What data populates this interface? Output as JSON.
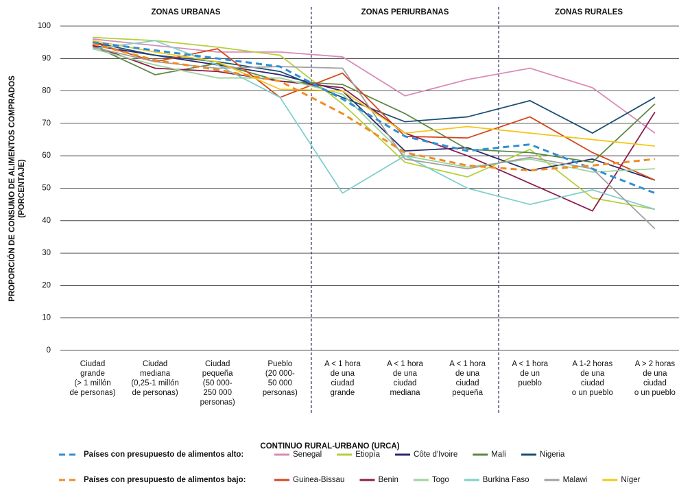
{
  "chart_data": {
    "type": "line",
    "y_label": [
      "PROPORCIÓN DE CONSUMO DE ALIMENTOS COMPRADOS",
      "(PORCENTAJE)"
    ],
    "x_label": "CONTINUO RURAL-URBANO (URCA)",
    "zones": [
      {
        "label": "ZONAS URBANAS",
        "span": 4
      },
      {
        "label": "ZONAS PERIURBANAS",
        "span": 3
      },
      {
        "label": "ZONAS RURALES",
        "span": 3
      }
    ],
    "categories": [
      [
        "Ciudad",
        "grande",
        "(> 1 millón",
        "de personas)"
      ],
      [
        "Ciudad",
        "mediana",
        "(0,25-1 millón",
        "de personas)"
      ],
      [
        "Ciudad",
        "pequeña",
        "(50 000-",
        "250 000",
        "personas)"
      ],
      [
        "Pueblo",
        "(20 000-",
        "50 000",
        "personas)"
      ],
      [
        "A < 1 hora",
        "de una",
        "ciudad",
        "grande"
      ],
      [
        "A < 1 hora",
        "de una",
        "ciudad",
        "mediana"
      ],
      [
        "A < 1 hora",
        "de una",
        "ciudad",
        "pequeña"
      ],
      [
        "A < 1 hora",
        "de un",
        "pueblo"
      ],
      [
        "A 1-2 horas",
        "de una",
        "ciudad",
        "o un pueblo"
      ],
      [
        "A > 2 horas",
        "de una",
        "ciudad",
        "o un pueblo"
      ]
    ],
    "ylim": [
      0,
      100
    ],
    "yticks": [
      0,
      10,
      20,
      30,
      40,
      50,
      60,
      70,
      80,
      90,
      100
    ],
    "grid": true,
    "groups": [
      {
        "name": "Países con presupuesto de alimentos alto:",
        "color": "#2f8fd6",
        "values": [
          95,
          92.5,
          90,
          87.5,
          77.5,
          66,
          61.5,
          63.5,
          56,
          48.5
        ],
        "series": [
          {
            "name": "Senegal",
            "color": "#d98bb7",
            "values": [
              96,
              94,
              92,
              92,
              90.5,
              78.5,
              83.5,
              87,
              81,
              67
            ]
          },
          {
            "name": "Etiopía",
            "color": "#b5cf3c",
            "values": [
              96.5,
              95.5,
              93.5,
              91,
              76,
              58,
              53.5,
              62,
              47,
              43.5
            ]
          },
          {
            "name": "Côte d'Ivoire",
            "color": "#2a2a6e",
            "values": [
              94,
              91,
              88,
              85,
              80,
              61.5,
              62.5,
              55.5,
              59,
              52.5
            ]
          },
          {
            "name": "Malí",
            "color": "#5a8a44",
            "values": [
              94,
              85,
              88.5,
              83,
              82,
              73,
              62,
              61,
              58,
              76
            ]
          },
          {
            "name": "Nigeria",
            "color": "#1c4f73",
            "values": [
              95,
              91,
              89,
              86,
              78,
              70.5,
              72,
              77,
              67,
              78
            ]
          }
        ]
      },
      {
        "name": "Países con presupuesto de alimentos bajo:",
        "color": "#f08c24",
        "values": [
          94.5,
          89.5,
          86.5,
          83,
          73,
          61,
          57,
          55.5,
          57,
          59
        ],
        "series": [
          {
            "name": "Guinea-Bissau",
            "color": "#d4461c",
            "values": [
              95,
              89,
              93,
              78,
              85.5,
              66,
              65.5,
              72,
              61,
              52.5
            ]
          },
          {
            "name": "Benin",
            "color": "#8c1d4f",
            "values": [
              94,
              87,
              86,
              83,
              81,
              67,
              60,
              51.5,
              43,
              73.5
            ]
          },
          {
            "name": "Togo",
            "color": "#9dd49a",
            "values": [
              93,
              88,
              84,
              84,
              79,
              60,
              56.5,
              59,
              55,
              56
            ]
          },
          {
            "name": "Burkina Faso",
            "color": "#7fcfcf",
            "values": [
              93,
              95.5,
              88,
              78,
              48.5,
              60,
              50,
              45,
              49.5,
              43.5
            ]
          },
          {
            "name": "Malawi",
            "color": "#a0a0a0",
            "values": [
              93.5,
              89,
              87,
              87.5,
              87,
              59,
              56,
              59.5,
              56,
              37.5
            ]
          },
          {
            "name": "Níger",
            "color": "#f5c518",
            "values": [
              95.5,
              92,
              89,
              80.5,
              80,
              67,
              69,
              67,
              65,
              63
            ]
          }
        ]
      }
    ]
  }
}
